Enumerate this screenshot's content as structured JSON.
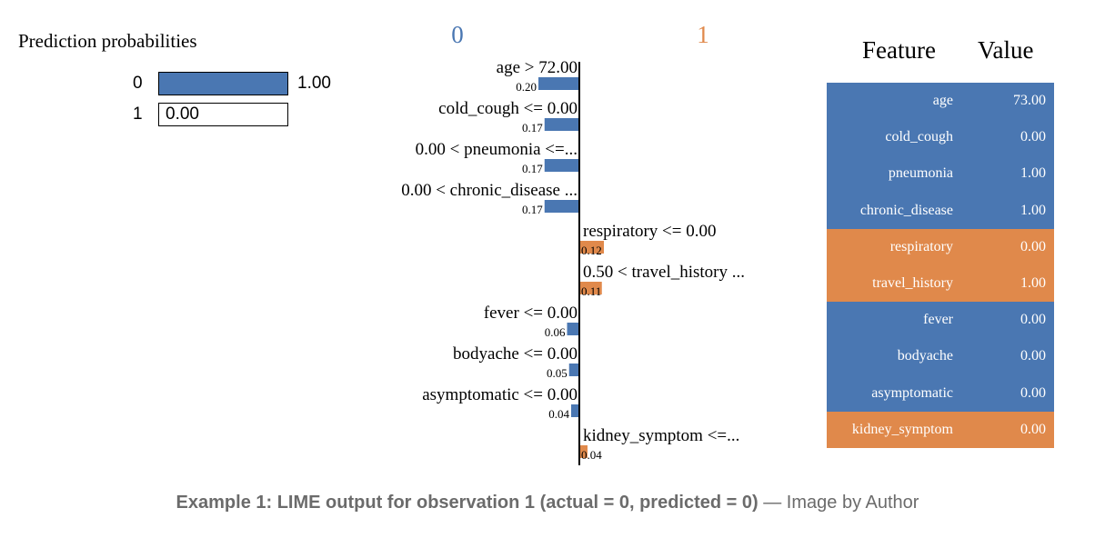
{
  "colors": {
    "class0": "#4a77b2",
    "class1": "#e0894b"
  },
  "prediction": {
    "title": "Prediction probabilities",
    "rows": [
      {
        "cls": "0",
        "prob": 1.0,
        "label": "1.00"
      },
      {
        "cls": "1",
        "prob": 0.0,
        "label": "0.00"
      }
    ]
  },
  "chart_data": {
    "type": "bar",
    "orientation": "horizontal",
    "class_headers": [
      "0",
      "1"
    ],
    "categories": [
      "age > 72.00",
      "cold_cough <= 0.00",
      "0.00 < pneumonia <=...",
      "0.00 < chronic_disease ...",
      "respiratory <= 0.00",
      "0.50 < travel_history ...",
      "fever <= 0.00",
      "bodyache <= 0.00",
      "asymptomatic <= 0.00",
      "kidney_symptom <=..."
    ],
    "values": [
      -0.2,
      -0.17,
      -0.17,
      -0.17,
      0.12,
      0.11,
      -0.06,
      -0.05,
      -0.04,
      0.04
    ],
    "value_labels": [
      "0.20",
      "0.17",
      "0.17",
      "0.17",
      "0.12",
      "0.11",
      "0.06",
      "0.05",
      "0.04",
      "0.04"
    ]
  },
  "table": {
    "headers": {
      "feature": "Feature",
      "value": "Value"
    },
    "rows": [
      {
        "feature": "age",
        "value": "73.00",
        "cls": 0
      },
      {
        "feature": "cold_cough",
        "value": "0.00",
        "cls": 0
      },
      {
        "feature": "pneumonia",
        "value": "1.00",
        "cls": 0
      },
      {
        "feature": "chronic_disease",
        "value": "1.00",
        "cls": 0
      },
      {
        "feature": "respiratory",
        "value": "0.00",
        "cls": 1
      },
      {
        "feature": "travel_history",
        "value": "1.00",
        "cls": 1
      },
      {
        "feature": "fever",
        "value": "0.00",
        "cls": 0
      },
      {
        "feature": "bodyache",
        "value": "0.00",
        "cls": 0
      },
      {
        "feature": "asymptomatic",
        "value": "0.00",
        "cls": 0
      },
      {
        "feature": "kidney_symptom",
        "value": "0.00",
        "cls": 1
      }
    ]
  },
  "caption": {
    "bold": "Example 1: LIME output for observation 1 (actual = 0, predicted = 0)",
    "rest": " — Image by Author"
  }
}
